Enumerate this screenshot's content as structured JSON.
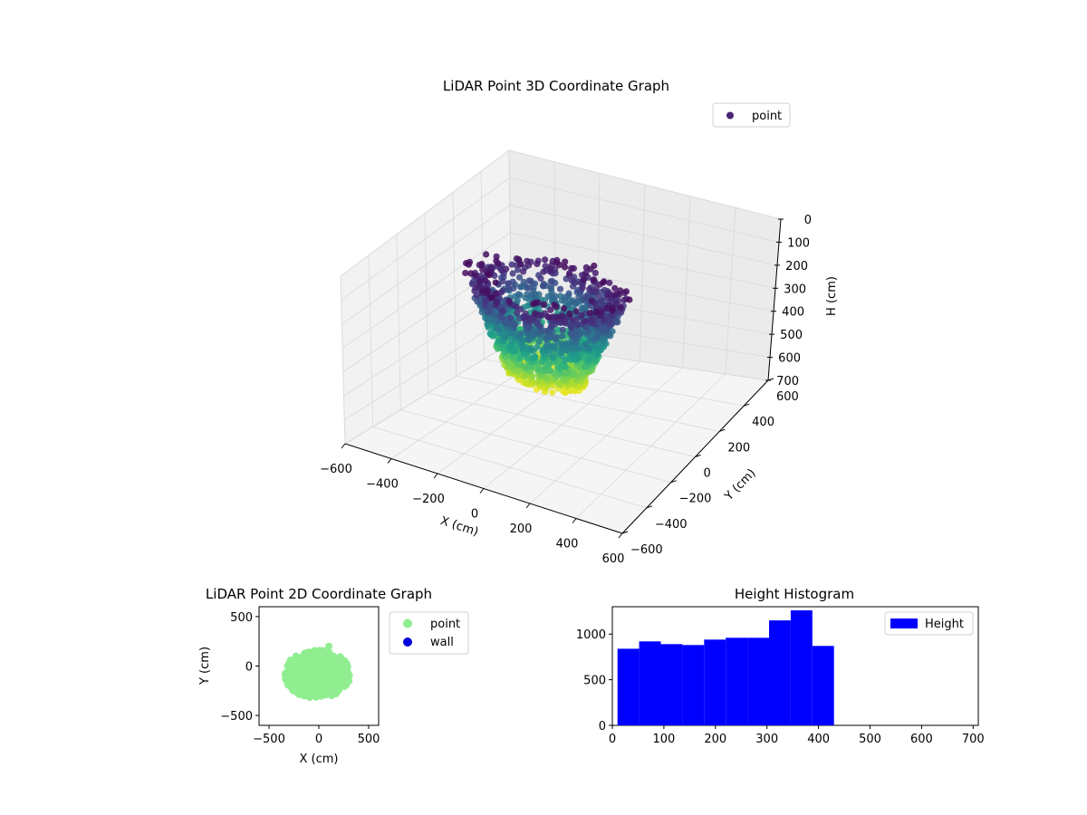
{
  "chart_data": [
    {
      "type": "scatter3d",
      "title": "LiDAR Point 3D Coordinate Graph",
      "xlabel": "X (cm)",
      "ylabel": "Y (cm)",
      "zlabel": "H (cm)",
      "xlim": [
        -600,
        600
      ],
      "ylim": [
        -600,
        600
      ],
      "zlim": [
        0,
        700
      ],
      "z_inverted": true,
      "xticks": [
        "−600",
        "−400",
        "−200",
        "0",
        "200",
        "400",
        "600"
      ],
      "yticks": [
        "−600",
        "−400",
        "−200",
        "0",
        "200",
        "400",
        "600"
      ],
      "zticks": [
        "0",
        "100",
        "200",
        "300",
        "400",
        "500",
        "600",
        "700"
      ],
      "colormap": "viridis",
      "grid": true,
      "legend": {
        "placement": "top-right",
        "entries": [
          {
            "label": "point",
            "color": "#482575"
          }
        ]
      }
    },
    {
      "type": "scatter",
      "title": "LiDAR Point 2D Coordinate Graph",
      "xlabel": "X (cm)",
      "ylabel": "Y (cm)",
      "xlim": [
        -600,
        600
      ],
      "ylim": [
        -600,
        600
      ],
      "xticks": [
        "−500",
        "0",
        "500"
      ],
      "yticks": [
        "−500",
        "0",
        "500"
      ],
      "cloud_x_range": [
        -380,
        350
      ],
      "cloud_y_range": [
        -370,
        200
      ],
      "legend": {
        "placement": "outside-right",
        "entries": [
          {
            "label": "point",
            "color": "#90ee90"
          },
          {
            "label": "wall",
            "color": "#0000dd"
          }
        ]
      }
    },
    {
      "type": "bar",
      "title": "Height Histogram",
      "xlim": [
        0,
        710
      ],
      "ylim": [
        0,
        1300
      ],
      "xticks": [
        "0",
        "100",
        "200",
        "300",
        "400",
        "500",
        "600",
        "700"
      ],
      "yticks": [
        "0",
        "500",
        "1000"
      ],
      "bin_edges": [
        10,
        52,
        94,
        136,
        178,
        220,
        262,
        304,
        346,
        388,
        430
      ],
      "values": [
        840,
        920,
        890,
        880,
        940,
        960,
        960,
        1150,
        1260,
        870
      ],
      "color": "#0000ff",
      "legend": {
        "placement": "top-right",
        "entries": [
          {
            "label": "Height",
            "color": "#0000ff"
          }
        ]
      }
    }
  ]
}
